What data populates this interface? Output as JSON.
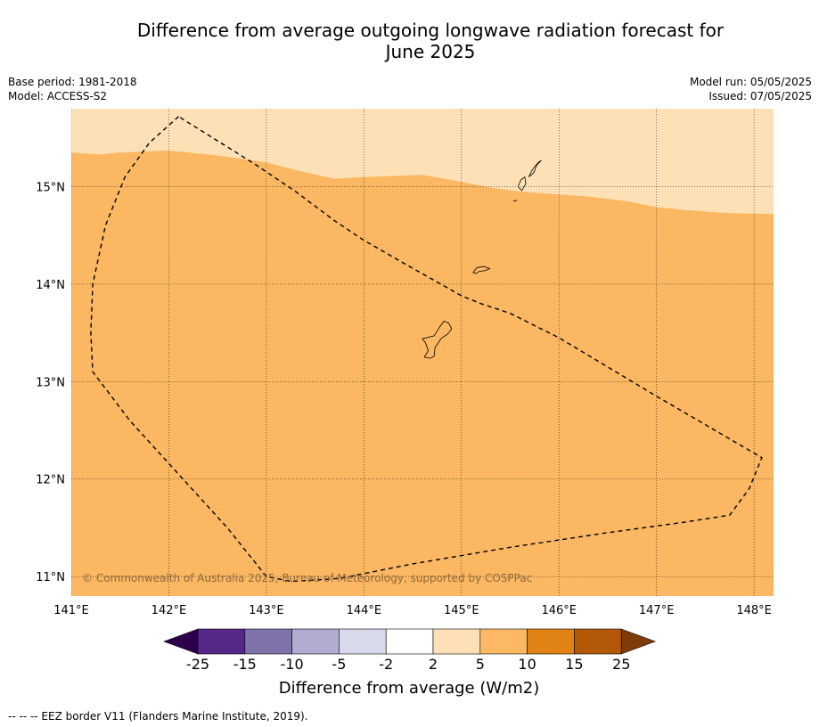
{
  "title": {
    "line1": "Difference from average outgoing longwave radiation forecast for",
    "line2": "June 2025"
  },
  "meta_left": {
    "base_period": "Base period: 1981-2018",
    "model": "Model: ACCESS-S2"
  },
  "meta_right": {
    "model_run": "Model run: 05/05/2025",
    "issued": "Issued: 07/05/2025"
  },
  "map": {
    "lon_range": [
      141,
      148.2
    ],
    "lat_range": [
      10.8,
      15.8
    ],
    "lon_ticks": [
      141,
      142,
      143,
      144,
      145,
      146,
      147,
      148
    ],
    "lon_tick_labels": [
      "141°E",
      "142°E",
      "143°E",
      "144°E",
      "145°E",
      "146°E",
      "147°E",
      "148°E"
    ],
    "lat_ticks": [
      15,
      14,
      13,
      12,
      11
    ],
    "lat_tick_labels": [
      "15°N",
      "14°N",
      "13°N",
      "12°N",
      "11°N"
    ],
    "gridlines": true,
    "fill_colors": {
      "band_2_5": "#fde0b5",
      "band_5_10": "#fbb762"
    },
    "boundary_lat_profile": [
      [
        141.0,
        15.35
      ],
      [
        141.3,
        15.33
      ],
      [
        141.5,
        15.35
      ],
      [
        142.0,
        15.37
      ],
      [
        142.5,
        15.32
      ],
      [
        143.0,
        15.25
      ],
      [
        143.3,
        15.17
      ],
      [
        143.7,
        15.08
      ],
      [
        144.0,
        15.1
      ],
      [
        144.3,
        15.11
      ],
      [
        144.6,
        15.12
      ],
      [
        145.0,
        15.05
      ],
      [
        145.3,
        14.99
      ],
      [
        145.6,
        14.95
      ],
      [
        146.0,
        14.92
      ],
      [
        146.3,
        14.9
      ],
      [
        146.7,
        14.85
      ],
      [
        147.0,
        14.79
      ],
      [
        147.3,
        14.76
      ],
      [
        147.7,
        14.73
      ],
      [
        148.2,
        14.72
      ]
    ],
    "eez_border": [
      [
        142.1,
        15.72
      ],
      [
        141.8,
        15.45
      ],
      [
        141.55,
        15.1
      ],
      [
        141.35,
        14.6
      ],
      [
        141.22,
        14.0
      ],
      [
        141.2,
        13.5
      ],
      [
        141.22,
        13.1
      ],
      [
        141.6,
        12.6
      ],
      [
        142.1,
        12.05
      ],
      [
        142.6,
        11.5
      ],
      [
        143.0,
        11.0
      ],
      [
        143.25,
        10.95
      ],
      [
        143.75,
        10.98
      ],
      [
        144.5,
        11.13
      ],
      [
        145.5,
        11.3
      ],
      [
        146.5,
        11.45
      ],
      [
        147.3,
        11.56
      ],
      [
        147.75,
        11.63
      ],
      [
        147.95,
        11.9
      ],
      [
        148.08,
        12.22
      ],
      [
        147.6,
        12.5
      ],
      [
        147.0,
        12.85
      ],
      [
        146.5,
        13.15
      ],
      [
        146.0,
        13.45
      ],
      [
        145.5,
        13.7
      ],
      [
        145.2,
        13.8
      ],
      [
        145.0,
        13.88
      ],
      [
        144.7,
        14.05
      ],
      [
        144.4,
        14.22
      ],
      [
        144.0,
        14.45
      ],
      [
        143.7,
        14.65
      ],
      [
        143.3,
        14.95
      ],
      [
        142.9,
        15.22
      ],
      [
        142.5,
        15.47
      ],
      [
        142.1,
        15.72
      ]
    ],
    "islands": [
      {
        "name": "Guam",
        "coords": [
          [
            144.62,
            13.25
          ],
          [
            144.66,
            13.32
          ],
          [
            144.63,
            13.4
          ],
          [
            144.6,
            13.44
          ],
          [
            144.72,
            13.47
          ],
          [
            144.77,
            13.55
          ],
          [
            144.82,
            13.62
          ],
          [
            144.87,
            13.6
          ],
          [
            144.9,
            13.54
          ],
          [
            144.86,
            13.49
          ],
          [
            144.79,
            13.44
          ],
          [
            144.73,
            13.35
          ],
          [
            144.72,
            13.26
          ],
          [
            144.68,
            13.24
          ],
          [
            144.62,
            13.25
          ]
        ]
      },
      {
        "name": "Rota",
        "coords": [
          [
            145.12,
            14.12
          ],
          [
            145.16,
            14.17
          ],
          [
            145.23,
            14.18
          ],
          [
            145.29,
            14.16
          ],
          [
            145.25,
            14.14
          ],
          [
            145.18,
            14.13
          ],
          [
            145.15,
            14.11
          ],
          [
            145.12,
            14.12
          ]
        ]
      },
      {
        "name": "Tinian",
        "coords": [
          [
            145.58,
            15.0
          ],
          [
            145.61,
            15.07
          ],
          [
            145.65,
            15.1
          ],
          [
            145.66,
            15.03
          ],
          [
            145.62,
            14.96
          ],
          [
            145.58,
            15.0
          ]
        ]
      },
      {
        "name": "Saipan",
        "coords": [
          [
            145.69,
            15.1
          ],
          [
            145.73,
            15.18
          ],
          [
            145.79,
            15.25
          ],
          [
            145.82,
            15.27
          ],
          [
            145.77,
            15.22
          ],
          [
            145.74,
            15.14
          ],
          [
            145.69,
            15.1
          ]
        ]
      },
      {
        "name": "Aguijan",
        "coords": [
          [
            145.53,
            14.85
          ],
          [
            145.57,
            14.86
          ],
          [
            145.53,
            14.85
          ]
        ]
      }
    ],
    "copyright": "© Commonwealth of Australia 2025, Bureau of Meteorology, supported by COSPPac"
  },
  "colorbar": {
    "title": "Difference from average (W/m2)",
    "labels": [
      "-25",
      "-15",
      "-10",
      "-5",
      "-2",
      "2",
      "5",
      "10",
      "15",
      "25"
    ],
    "colors": [
      "#2d004b",
      "#542788",
      "#8073ac",
      "#b2abd2",
      "#d8daeb",
      "#ffffff",
      "#fee0b6",
      "#fdb863",
      "#e08214",
      "#b35806",
      "#7f3b08"
    ]
  },
  "footer": "--  --  -- EEZ border V11 (Flanders Marine Institute, 2019)."
}
